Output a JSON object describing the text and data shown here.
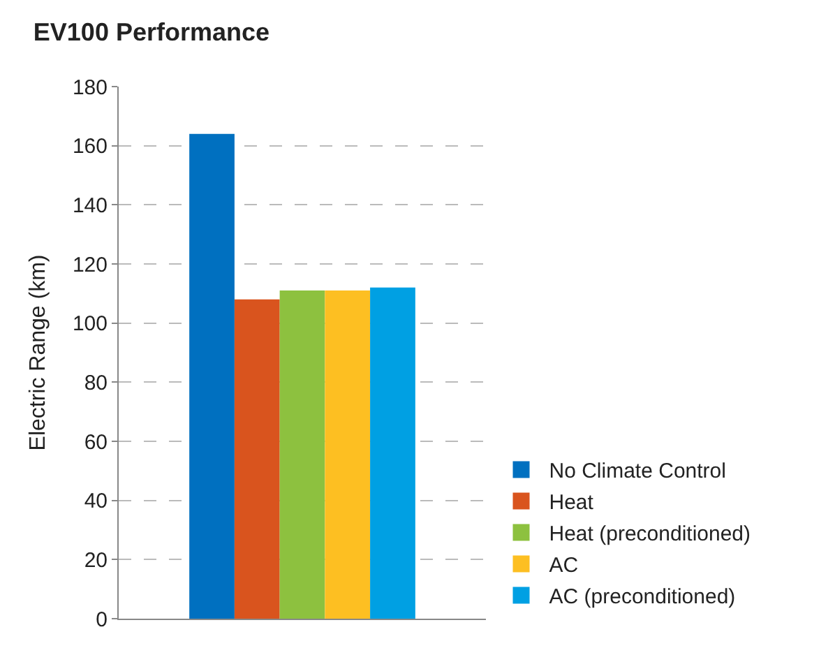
{
  "chart_data": {
    "type": "bar",
    "title": "EV100 Performance",
    "ylabel": "Electric Range (km)",
    "categories": [
      null
    ],
    "series": [
      {
        "name": "No Climate Control",
        "color": "#0070c0",
        "values": [
          164
        ]
      },
      {
        "name": "Heat",
        "color": "#d9541e",
        "values": [
          108
        ]
      },
      {
        "name": "Heat (preconditioned)",
        "color": "#8dc13f",
        "values": [
          111
        ]
      },
      {
        "name": "AC",
        "color": "#fdbf22",
        "values": [
          111
        ]
      },
      {
        "name": "AC (preconditioned)",
        "color": "#00a0e3",
        "values": [
          112
        ]
      }
    ],
    "ylim": [
      0,
      180
    ],
    "yticks": [
      0,
      20,
      40,
      60,
      80,
      100,
      120,
      140,
      160,
      180
    ],
    "grid": "y",
    "legend": "bottom right"
  }
}
